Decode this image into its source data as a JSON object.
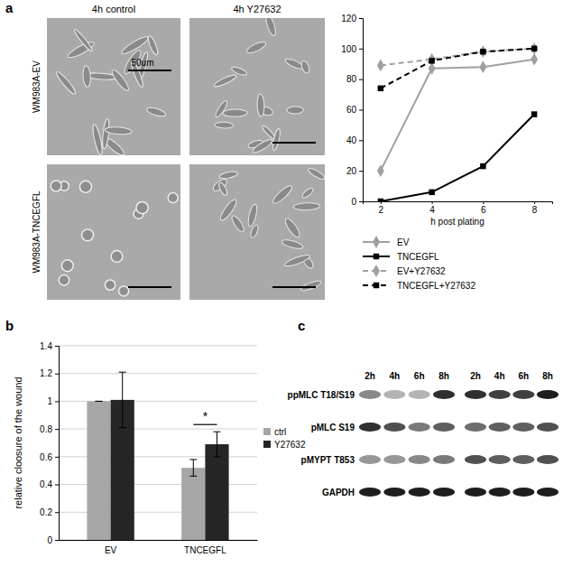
{
  "panel_labels": [
    "a",
    "b",
    "c"
  ],
  "micrographs": {
    "columns": [
      "4h control",
      "4h Y27632"
    ],
    "rows": [
      "WM983A-EV",
      "WM983A-TNCEGFL"
    ],
    "scale_bar": "50um"
  },
  "chart_data": [
    {
      "type": "line",
      "x_label": "h post plating",
      "categories": [
        "2",
        "4",
        "6",
        "8"
      ],
      "ylim": [
        0,
        120
      ],
      "yticks": [
        0,
        20,
        40,
        60,
        80,
        100,
        120
      ],
      "grid": false,
      "legend": "bottom",
      "series": [
        {
          "name": "EV",
          "color": "#a0a0a0",
          "marker": "diamond",
          "line_style": "solid",
          "values": [
            20,
            87,
            88,
            93
          ]
        },
        {
          "name": "TNCEGFL",
          "color": "#000000",
          "marker": "square",
          "line_style": "solid",
          "values": [
            0,
            6,
            23,
            57
          ]
        },
        {
          "name": "EV+Y27632",
          "color": "#a0a0a0",
          "marker": "diamond",
          "line_style": "dashed",
          "values": [
            89,
            93,
            98,
            100
          ]
        },
        {
          "name": "TNCEGFL+Y27632",
          "color": "#000000",
          "marker": "square",
          "line_style": "dashed",
          "values": [
            74,
            92,
            98,
            100
          ]
        }
      ]
    },
    {
      "type": "bar",
      "y_label": "relative cloosure of the wound",
      "categories": [
        "EV",
        "TNCEGFL"
      ],
      "ylim": [
        0,
        1.4
      ],
      "yticks": [
        0,
        0.2,
        0.4,
        0.6,
        0.8,
        1,
        1.2,
        1.4
      ],
      "grid": true,
      "legend": "right",
      "series": [
        {
          "name": "ctrl",
          "color": "#a6a6a6",
          "values": [
            1,
            0.52
          ],
          "errors": [
            0,
            0.06
          ]
        },
        {
          "name": "Y27632",
          "color": "#262626",
          "values": [
            1.01,
            0.69
          ],
          "errors": [
            0.2,
            0.09
          ]
        }
      ],
      "annotations": [
        {
          "text": "*",
          "category": 1
        }
      ]
    }
  ],
  "blot": {
    "lanes": [
      "2h",
      "4h",
      "6h",
      "8h",
      "2h",
      "4h",
      "6h",
      "8h"
    ],
    "rows": [
      {
        "label": "ppMLC T18/S19",
        "intensity": [
          0.55,
          0.4,
          0.4,
          0.85,
          0.85,
          0.8,
          0.8,
          0.9
        ]
      },
      {
        "label": "pMLC S19",
        "intensity": [
          0.85,
          0.75,
          0.6,
          0.7,
          0.65,
          0.7,
          0.7,
          0.75
        ]
      },
      {
        "label": "pMYPT T853",
        "intensity": [
          0.5,
          0.5,
          0.55,
          0.6,
          0.75,
          0.7,
          0.7,
          0.75
        ]
      },
      {
        "label": "GAPDH",
        "intensity": [
          0.9,
          0.9,
          0.9,
          0.9,
          0.9,
          0.9,
          0.9,
          0.9
        ]
      }
    ]
  }
}
